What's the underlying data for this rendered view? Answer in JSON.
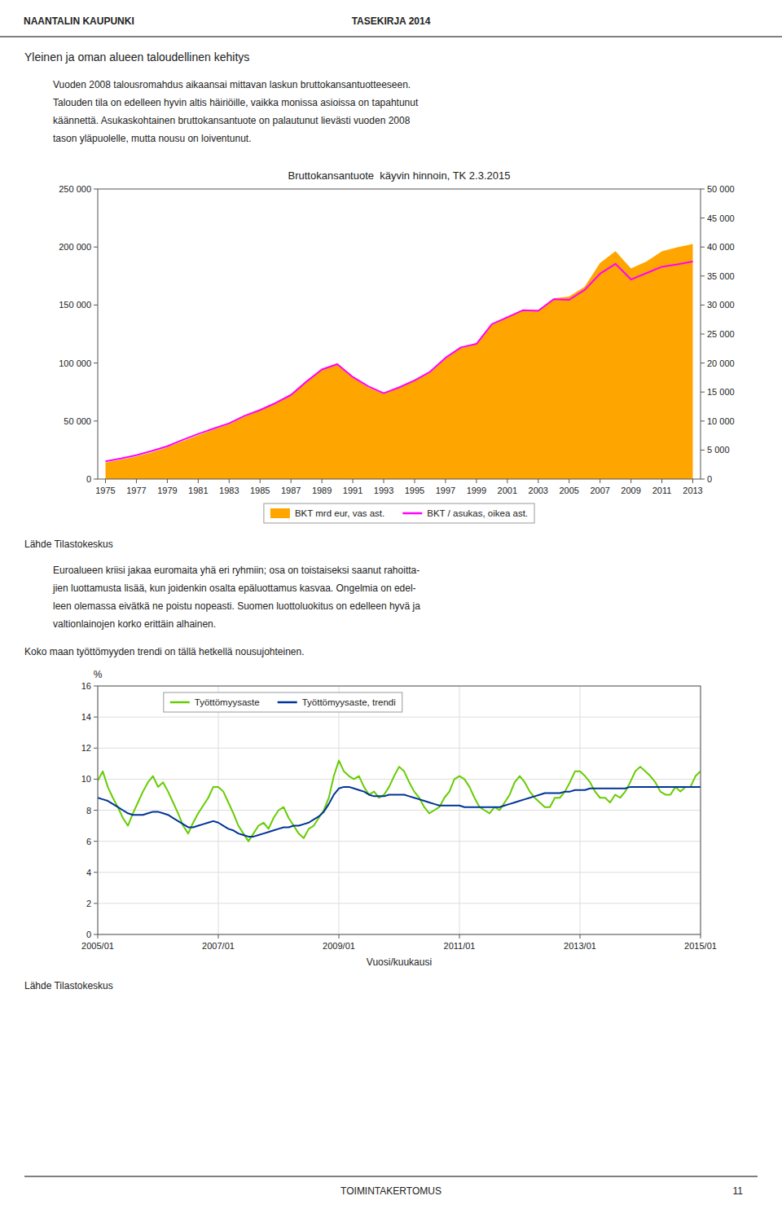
{
  "page": {
    "header_left": "NAANTALIN KAUPUNKI",
    "header_right": "TASEKIRJA 2014",
    "section_heading": "Yleinen ja oman alueen taloudellinen kehitys",
    "paragraph1": [
      "Vuoden 2008 talousromahdus aikaansai mittavan laskun bruttokansantuotteeseen.",
      "Talouden tila on edelleen hyvin altis häiriöille, vaikka monissa asioissa on tapahtunut",
      "käännettä. Asukaskohtainen bruttokansantuote on palautunut lievästi vuoden 2008",
      "tason yläpuolelle, mutta nousu on loiventunut."
    ],
    "source1": "Lähde Tilastokeskus",
    "paragraph2": [
      "Euroalueen kriisi jakaa euromaita yhä eri ryhmiin; osa on toistaiseksi saanut rahoitta-",
      "jien luottamusta lisää, kun joidenkin osalta epäluottamus kasvaa. Ongelmia on edel-",
      "leen olemassa eivätkä ne poistu nopeasti. Suomen luottoluokitus on edelleen hyvä ja",
      "valtionlainojen korko erittäin alhainen."
    ],
    "paragraph3": "Koko maan työttömyyden trendi on tällä hetkellä nousujohteinen.",
    "source2": "Lähde Tilastokeskus",
    "footer": "TOIMINTAKERTOMUS",
    "page_number": "11"
  },
  "chart_data": [
    {
      "type": "line",
      "title": "Bruttokansantuote  käyvin hinnoin, TK 2.3.2015",
      "x": [
        1975,
        1976,
        1977,
        1978,
        1979,
        1980,
        1981,
        1982,
        1983,
        1984,
        1985,
        1986,
        1987,
        1988,
        1989,
        1990,
        1991,
        1992,
        1993,
        1994,
        1995,
        1996,
        1997,
        1998,
        1999,
        2000,
        2001,
        2002,
        2003,
        2004,
        2005,
        2006,
        2007,
        2008,
        2009,
        2010,
        2011,
        2012,
        2013
      ],
      "xlim": [
        1974.5,
        2013.5
      ],
      "xticks": [
        1975,
        1977,
        1979,
        1981,
        1983,
        1985,
        1987,
        1989,
        1991,
        1993,
        1995,
        1997,
        1999,
        2001,
        2003,
        2005,
        2007,
        2009,
        2011,
        2013
      ],
      "ylim": [
        0,
        250000
      ],
      "yticks": [
        0,
        {
          "value": 50000,
          "label": "50 000"
        },
        {
          "value": 100000,
          "label": "100 000"
        },
        {
          "value": 150000,
          "label": "150 000"
        },
        {
          "value": 200000,
          "label": "200 000"
        },
        {
          "value": 250000,
          "label": "250 000"
        }
      ],
      "y2lim": [
        0,
        50000
      ],
      "y2ticks": [
        0,
        {
          "value": 5000,
          "label": "5 000"
        },
        {
          "value": 10000,
          "label": "10 000"
        },
        {
          "value": 15000,
          "label": "15 000"
        },
        {
          "value": 20000,
          "label": "20 000"
        },
        {
          "value": 25000,
          "label": "25 000"
        },
        {
          "value": 30000,
          "label": "30 000"
        },
        {
          "value": 35000,
          "label": "35 000"
        },
        {
          "value": 40000,
          "label": "40 000"
        },
        {
          "value": 45000,
          "label": "45 000"
        },
        {
          "value": 50000,
          "label": "50 000"
        }
      ],
      "grid": false,
      "legend": "bottom",
      "series": [
        {
          "name": "BKT mrd eur, vas ast.",
          "type": "area",
          "color": "#FFA500",
          "values": [
            14200,
            16600,
            19500,
            23000,
            27300,
            32700,
            37800,
            42600,
            47300,
            53700,
            59200,
            65000,
            72200,
            83600,
            95000,
            99800,
            88000,
            79000,
            73500,
            78500,
            84800,
            91700,
            103800,
            112900,
            116200,
            132800,
            139600,
            145900,
            145700,
            155800,
            157300,
            165800,
            186200,
            196400,
            181500,
            187500,
            196200,
            199800,
            202600
          ]
        },
        {
          "name": "BKT / asukas, oikea ast.",
          "type": "line",
          "color": "#FF00FF",
          "axis": "y2",
          "values": [
            3050,
            3540,
            4120,
            4850,
            5650,
            6750,
            7780,
            8700,
            9600,
            10900,
            11900,
            13100,
            14500,
            16800,
            18900,
            19800,
            17600,
            16000,
            14800,
            15800,
            17000,
            18500,
            20900,
            22700,
            23300,
            26700,
            27900,
            29100,
            29000,
            31000,
            30900,
            32600,
            35400,
            37100,
            34400,
            35500,
            36600,
            37000,
            37500
          ]
        }
      ]
    },
    {
      "type": "line",
      "xlabel": "Vuosi/kuukausi",
      "ylabel": "%",
      "categories": [
        "2005/01",
        null,
        null,
        null,
        null,
        null,
        null,
        null,
        null,
        null,
        null,
        null,
        null,
        null,
        null,
        null,
        null,
        null,
        null,
        null,
        null,
        null,
        null,
        null,
        "2007/01",
        null,
        null,
        null,
        null,
        null,
        null,
        null,
        null,
        null,
        null,
        null,
        null,
        null,
        null,
        null,
        null,
        null,
        null,
        null,
        null,
        null,
        null,
        null,
        "2009/01",
        null,
        null,
        null,
        null,
        null,
        null,
        null,
        null,
        null,
        null,
        null,
        null,
        null,
        null,
        null,
        null,
        null,
        null,
        null,
        null,
        null,
        null,
        null,
        "2011/01",
        null,
        null,
        null,
        null,
        null,
        null,
        null,
        null,
        null,
        null,
        null,
        null,
        null,
        null,
        null,
        null,
        null,
        null,
        null,
        null,
        null,
        null,
        null,
        "2013/01",
        null,
        null,
        null,
        null,
        null,
        null,
        null,
        null,
        null,
        null,
        null,
        null,
        null,
        null,
        null,
        null,
        null,
        null,
        null,
        null,
        null,
        null,
        null,
        "2015/01"
      ],
      "ylim": [
        0,
        16
      ],
      "yticks": [
        0,
        2,
        4,
        6,
        8,
        10,
        12,
        14,
        16
      ],
      "grid": true,
      "legend": "upper left",
      "series": [
        {
          "name": "Työttömyysaste",
          "color": "#66CC00",
          "values": [
            9.9,
            10.5,
            9.5,
            8.8,
            8.2,
            7.5,
            7.0,
            7.8,
            8.5,
            9.2,
            9.8,
            10.2,
            9.5,
            9.8,
            9.2,
            8.5,
            7.8,
            7.0,
            6.5,
            7.2,
            7.8,
            8.3,
            8.8,
            9.5,
            9.5,
            9.2,
            8.5,
            7.8,
            7.0,
            6.5,
            6.0,
            6.5,
            7.0,
            7.2,
            6.8,
            7.5,
            8.0,
            8.2,
            7.5,
            7.0,
            6.5,
            6.2,
            6.8,
            7.0,
            7.5,
            8.0,
            8.8,
            10.2,
            11.2,
            10.5,
            10.2,
            10.0,
            10.2,
            9.5,
            9.0,
            9.2,
            8.8,
            9.0,
            9.5,
            10.2,
            10.8,
            10.5,
            9.8,
            9.2,
            8.8,
            8.2,
            7.8,
            8.0,
            8.2,
            8.8,
            9.2,
            10.0,
            10.2,
            10.0,
            9.5,
            8.8,
            8.2,
            8.0,
            7.8,
            8.2,
            8.0,
            8.5,
            9.0,
            9.8,
            10.2,
            9.8,
            9.2,
            8.8,
            8.5,
            8.2,
            8.2,
            8.8,
            8.8,
            9.2,
            9.8,
            10.5,
            10.5,
            10.2,
            9.8,
            9.2,
            8.8,
            8.8,
            8.5,
            9.0,
            8.8,
            9.2,
            9.8,
            10.5,
            10.8,
            10.5,
            10.2,
            9.8,
            9.2,
            9.0,
            9.0,
            9.5,
            9.2,
            9.5,
            9.5,
            10.2,
            10.5
          ]
        },
        {
          "name": "Työttömyysaste, trendi",
          "color": "#003399",
          "values": [
            8.8,
            8.7,
            8.6,
            8.4,
            8.2,
            8.0,
            7.8,
            7.7,
            7.7,
            7.7,
            7.8,
            7.9,
            7.9,
            7.8,
            7.7,
            7.5,
            7.3,
            7.1,
            6.9,
            6.9,
            7.0,
            7.1,
            7.2,
            7.3,
            7.2,
            7.0,
            6.8,
            6.7,
            6.5,
            6.4,
            6.3,
            6.3,
            6.4,
            6.5,
            6.6,
            6.7,
            6.8,
            6.9,
            6.9,
            7.0,
            7.0,
            7.1,
            7.2,
            7.4,
            7.6,
            7.9,
            8.4,
            9.0,
            9.4,
            9.5,
            9.5,
            9.4,
            9.3,
            9.2,
            9.0,
            8.9,
            8.9,
            8.9,
            9.0,
            9.0,
            9.0,
            9.0,
            8.9,
            8.8,
            8.7,
            8.6,
            8.5,
            8.4,
            8.3,
            8.3,
            8.3,
            8.3,
            8.3,
            8.2,
            8.2,
            8.2,
            8.2,
            8.2,
            8.2,
            8.2,
            8.2,
            8.3,
            8.4,
            8.5,
            8.6,
            8.7,
            8.8,
            8.9,
            9.0,
            9.1,
            9.1,
            9.1,
            9.1,
            9.2,
            9.2,
            9.3,
            9.3,
            9.3,
            9.4,
            9.4,
            9.4,
            9.4,
            9.4,
            9.4,
            9.4,
            9.4,
            9.5,
            9.5,
            9.5,
            9.5,
            9.5,
            9.5,
            9.5,
            9.5,
            9.5,
            9.5,
            9.5,
            9.5,
            9.5,
            9.5,
            9.5
          ]
        }
      ]
    }
  ]
}
